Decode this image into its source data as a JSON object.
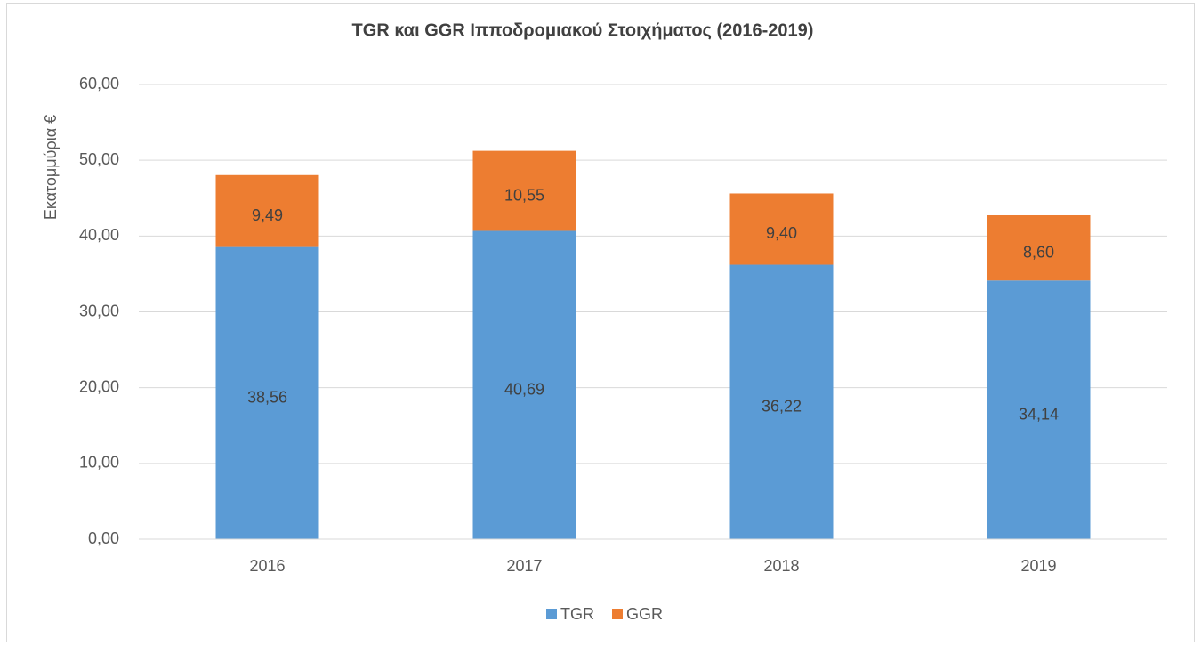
{
  "chart_data": {
    "type": "stacked_bar",
    "title": "TGR και GGR Ιπποδρομιακού Στοιχήματος (2016-2019)",
    "y_label": "Εκατομμύρια €",
    "categories": [
      "2016",
      "2017",
      "2018",
      "2019"
    ],
    "series": [
      {
        "name": "TGR",
        "color": "#5b9bd5",
        "values": [
          38.56,
          40.69,
          36.22,
          34.14
        ],
        "value_labels": [
          "38,56",
          "40,69",
          "36,22",
          "34,14"
        ]
      },
      {
        "name": "GGR",
        "color": "#ed7d31",
        "values": [
          9.49,
          10.55,
          9.4,
          8.6
        ],
        "value_labels": [
          "9,49",
          "10,55",
          "9,40",
          "8,60"
        ]
      }
    ],
    "ylim": [
      0,
      60
    ],
    "yticks": [
      {
        "value": 0,
        "label": "0,00"
      },
      {
        "value": 10,
        "label": "10,00"
      },
      {
        "value": 20,
        "label": "20,00"
      },
      {
        "value": 30,
        "label": "30,00"
      },
      {
        "value": 40,
        "label": "40,00"
      },
      {
        "value": 50,
        "label": "50,00"
      },
      {
        "value": 60,
        "label": "60,00"
      }
    ],
    "grid": true,
    "legend": "bottom"
  }
}
